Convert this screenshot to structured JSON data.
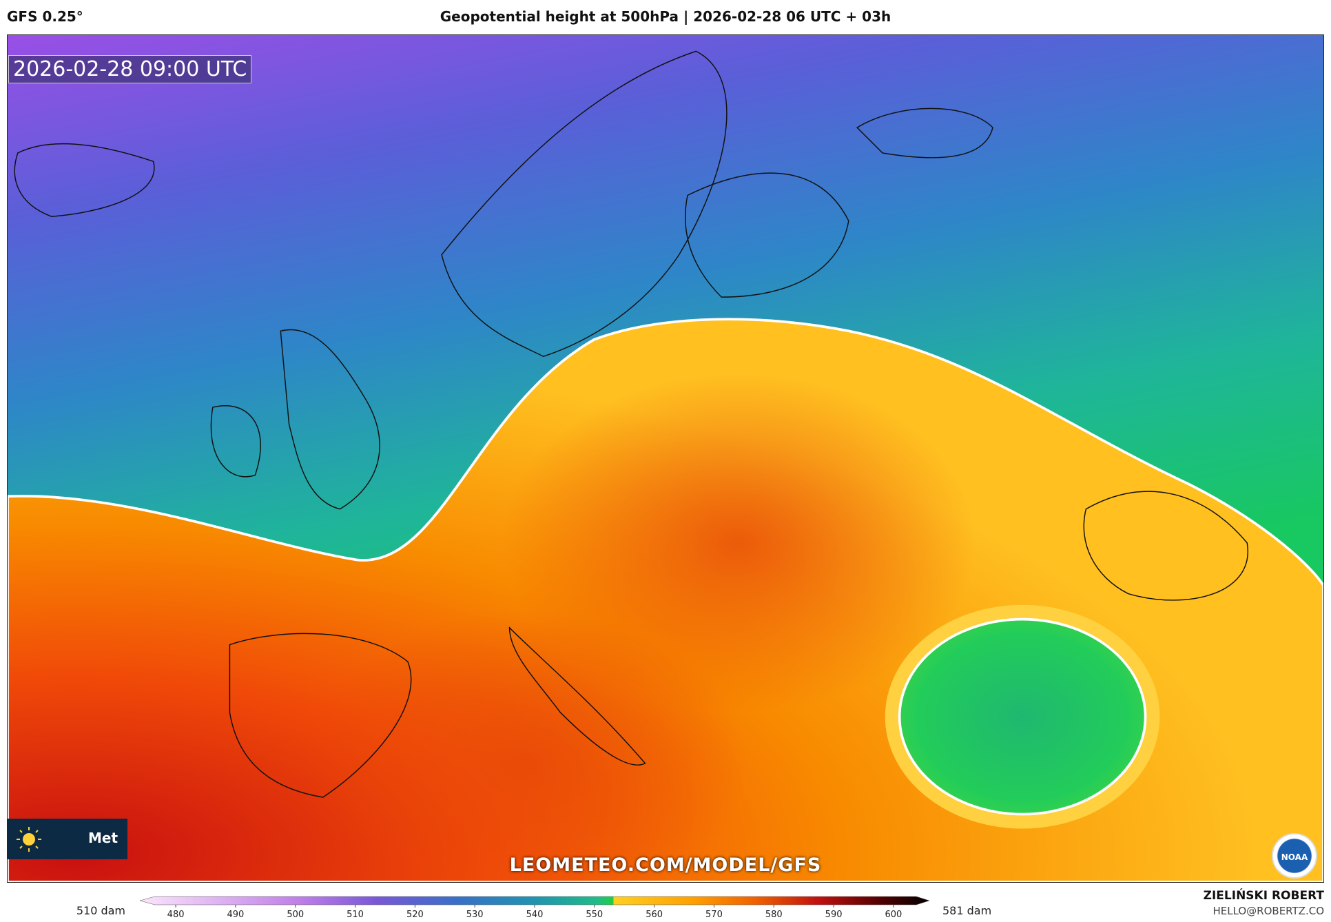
{
  "header": {
    "model": "GFS 0.25°",
    "title": "Geopotential height at 500hPa | 2026-02-28 06 UTC + 03h"
  },
  "map": {
    "valid_time": "2026-02-28 09:00 UTC",
    "watermark": "LEOMETEO.COM/MODEL/GFS",
    "logo_text": "Met",
    "badge": "NOAA"
  },
  "colorbar": {
    "ticks": [
      480,
      490,
      500,
      510,
      520,
      530,
      540,
      550,
      560,
      570,
      580,
      590,
      600
    ],
    "lim": [
      474,
      606
    ],
    "min_label": "510 dam",
    "max_label": "581 dam"
  },
  "footer": {
    "author": "ZIELIŃSKI ROBERT",
    "email": "HELLO@ROBERTZ.CO"
  }
}
